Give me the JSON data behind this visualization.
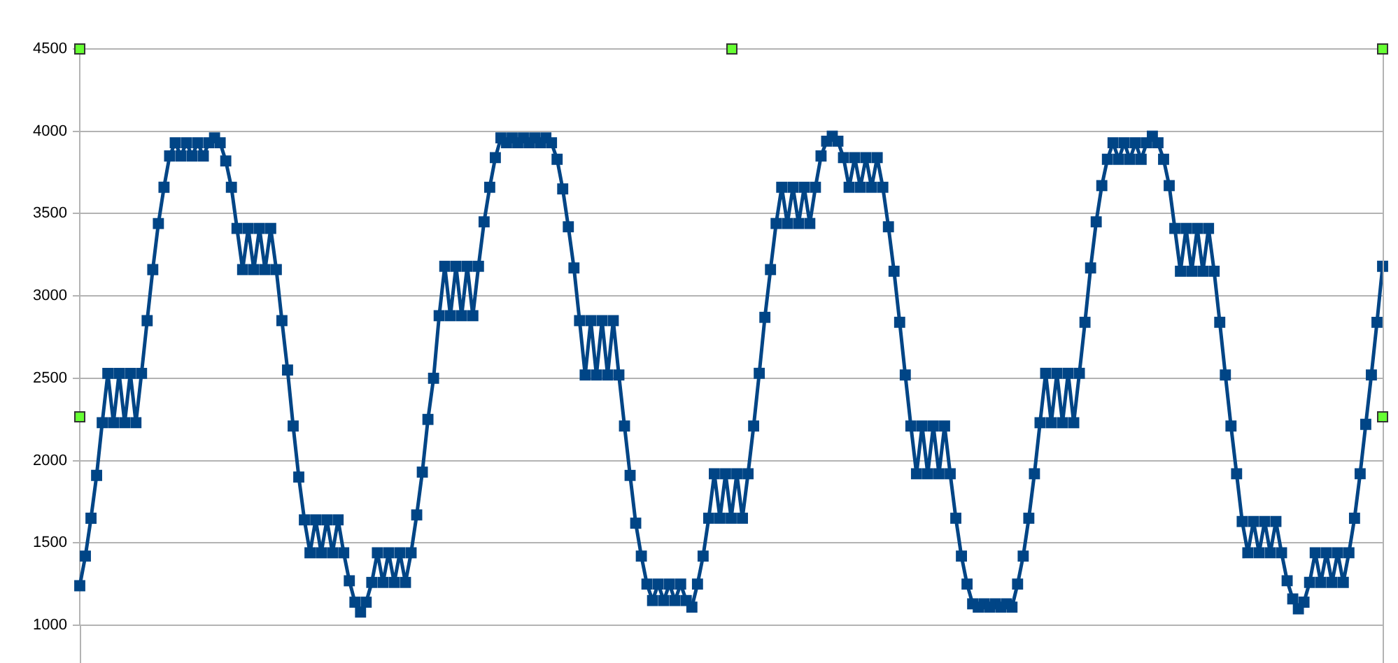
{
  "chart_data": {
    "type": "line",
    "marker": "square",
    "grid": "y",
    "color": "#004586",
    "ylim": [
      1000,
      4500
    ],
    "yticks": [
      1000,
      1500,
      2000,
      2500,
      3000,
      3500,
      4000,
      4500
    ],
    "categories": [
      null,
      null,
      null,
      null,
      null,
      null,
      null,
      null,
      null,
      null,
      null,
      null,
      null,
      null,
      null,
      null,
      null,
      null,
      null,
      null,
      null,
      null,
      null,
      null,
      null,
      null,
      null,
      null,
      null,
      null,
      null,
      null,
      null,
      null,
      null,
      null,
      null,
      null,
      null,
      null,
      null,
      null,
      null,
      null,
      null,
      null,
      null,
      null,
      null,
      null,
      null,
      null,
      null,
      null,
      null,
      null,
      null,
      null,
      null,
      null,
      null,
      null,
      null,
      null,
      null,
      null,
      null,
      null,
      null,
      null,
      null,
      null,
      null,
      null,
      null,
      null,
      null,
      null,
      null,
      null,
      null,
      null,
      null,
      null,
      null,
      null,
      null,
      null,
      null,
      null,
      null,
      null,
      null,
      null,
      null,
      null,
      null,
      null,
      null,
      null,
      null,
      null,
      null,
      null,
      null,
      null,
      null,
      null,
      null,
      null,
      null,
      null,
      null,
      null,
      null,
      null,
      null,
      null,
      null,
      null,
      null,
      null,
      null,
      null,
      null,
      null,
      null,
      null,
      null,
      null,
      null,
      null,
      null,
      null,
      null,
      null,
      null,
      null,
      null,
      null,
      null,
      null,
      null,
      null,
      null,
      null,
      null,
      null,
      null,
      null,
      null,
      null,
      null,
      null,
      null,
      null,
      null,
      null,
      null,
      null,
      null,
      null,
      null,
      null,
      null,
      null,
      null,
      null,
      null,
      null,
      null,
      null,
      null,
      null,
      null,
      null,
      null,
      null,
      null,
      null,
      null,
      null,
      null,
      null,
      null,
      null,
      null,
      null,
      null,
      null,
      null,
      null,
      null,
      null,
      null,
      null,
      null,
      null,
      null,
      null,
      null,
      null,
      null,
      null,
      null,
      null,
      null,
      null,
      null,
      null,
      null,
      null,
      null,
      null,
      null,
      null,
      null,
      null,
      null,
      null,
      null,
      null,
      null,
      null,
      null,
      null,
      null,
      null,
      null,
      null,
      null,
      null,
      null
    ],
    "values": [
      1240,
      1420,
      1650,
      1910,
      2230,
      2530,
      2230,
      2530,
      2230,
      2530,
      2230,
      2530,
      2850,
      3160,
      3440,
      3660,
      3850,
      3930,
      3850,
      3930,
      3850,
      3930,
      3850,
      3930,
      3960,
      3930,
      3820,
      3660,
      3410,
      3160,
      3410,
      3160,
      3410,
      3160,
      3410,
      3160,
      2850,
      2550,
      2210,
      1900,
      1640,
      1440,
      1640,
      1440,
      1640,
      1440,
      1640,
      1440,
      1270,
      1140,
      1080,
      1140,
      1260,
      1440,
      1260,
      1440,
      1260,
      1440,
      1260,
      1440,
      1670,
      1930,
      2250,
      2500,
      2880,
      3180,
      2880,
      3180,
      2880,
      3180,
      2880,
      3180,
      3450,
      3660,
      3840,
      3960,
      3930,
      3960,
      3930,
      3960,
      3930,
      3960,
      3930,
      3960,
      3930,
      3830,
      3650,
      3420,
      3170,
      2850,
      2520,
      2850,
      2520,
      2850,
      2520,
      2850,
      2520,
      2210,
      1910,
      1620,
      1420,
      1250,
      1150,
      1250,
      1150,
      1250,
      1150,
      1250,
      1150,
      1110,
      1250,
      1420,
      1650,
      1920,
      1650,
      1920,
      1650,
      1920,
      1650,
      1920,
      2210,
      2530,
      2870,
      3160,
      3440,
      3660,
      3440,
      3660,
      3440,
      3660,
      3440,
      3660,
      3850,
      3940,
      3970,
      3940,
      3840,
      3660,
      3840,
      3660,
      3840,
      3660,
      3840,
      3660,
      3420,
      3150,
      2840,
      2520,
      2210,
      1920,
      2210,
      1920,
      2210,
      1920,
      2210,
      1920,
      1650,
      1420,
      1250,
      1130,
      1110,
      1130,
      1110,
      1130,
      1110,
      1130,
      1110,
      1250,
      1420,
      1650,
      1920,
      2230,
      2530,
      2230,
      2530,
      2230,
      2530,
      2230,
      2530,
      2840,
      3170,
      3450,
      3670,
      3830,
      3930,
      3830,
      3930,
      3830,
      3930,
      3830,
      3930,
      3970,
      3930,
      3830,
      3670,
      3410,
      3150,
      3410,
      3150,
      3410,
      3150,
      3410,
      3150,
      2840,
      2520,
      2210,
      1920,
      1630,
      1440,
      1630,
      1440,
      1630,
      1440,
      1630,
      1440,
      1270,
      1160,
      1100,
      1140,
      1260,
      1440,
      1260,
      1440,
      1260,
      1440,
      1260,
      1440,
      1650,
      1920,
      2220,
      2520,
      2840,
      3180
    ]
  }
}
